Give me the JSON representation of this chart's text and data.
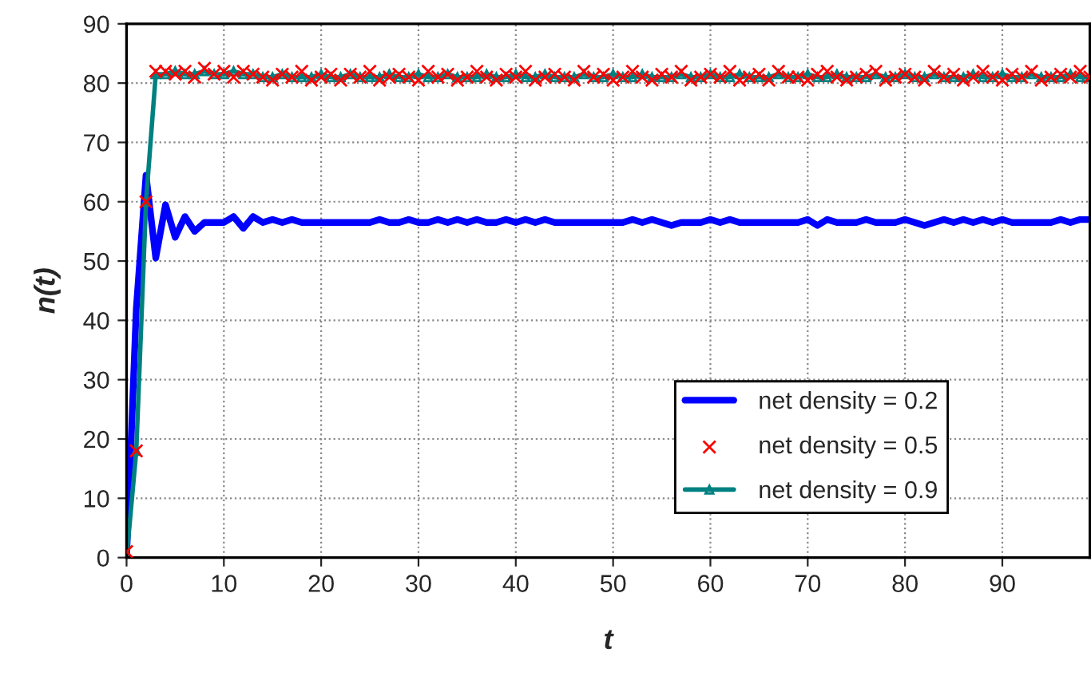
{
  "chart_data": {
    "type": "line",
    "xlabel": "t",
    "ylabel": "n(t)",
    "x": [
      0,
      1,
      2,
      3,
      4,
      5,
      6,
      7,
      8,
      9,
      10,
      11,
      12,
      13,
      14,
      15,
      16,
      17,
      18,
      19,
      20,
      21,
      22,
      23,
      24,
      25,
      26,
      27,
      28,
      29,
      30,
      31,
      32,
      33,
      34,
      35,
      36,
      37,
      38,
      39,
      40,
      41,
      42,
      43,
      44,
      45,
      46,
      47,
      48,
      49,
      50,
      51,
      52,
      53,
      54,
      55,
      56,
      57,
      58,
      59,
      60,
      61,
      62,
      63,
      64,
      65,
      66,
      67,
      68,
      69,
      70,
      71,
      72,
      73,
      74,
      75,
      76,
      77,
      78,
      79,
      80,
      81,
      82,
      83,
      84,
      85,
      86,
      87,
      88,
      89,
      90,
      91,
      92,
      93,
      94,
      95,
      96,
      97,
      98,
      99
    ],
    "series": [
      {
        "name": "net density = 0.2",
        "color": "#0000ff",
        "marker": "none",
        "values": [
          0,
          42,
          64.5,
          50.5,
          59.5,
          54,
          57.5,
          55,
          56.5,
          56.5,
          56.5,
          57.5,
          55.5,
          57.5,
          56.5,
          57,
          56.5,
          57,
          56.5,
          56.5,
          56.5,
          56.5,
          56.5,
          56.5,
          56.5,
          56.5,
          57,
          56.5,
          56.5,
          57,
          56.5,
          56.5,
          57,
          56.5,
          57,
          56.5,
          57,
          56.5,
          56.5,
          57,
          56.5,
          57,
          56.5,
          57,
          56.5,
          56.5,
          56.5,
          56.5,
          56.5,
          56.5,
          56.5,
          56.5,
          57,
          56.5,
          57,
          56.5,
          56,
          56.5,
          56.5,
          56.5,
          57,
          56.5,
          57,
          56.5,
          56.5,
          56.5,
          56.5,
          56.5,
          56.5,
          56.5,
          57,
          56,
          57,
          56.5,
          56.5,
          56.5,
          57,
          56.5,
          56.5,
          56.5,
          57,
          56.5,
          56,
          56.5,
          57,
          56.5,
          57,
          56.5,
          57,
          56.5,
          57,
          56.5,
          56.5,
          56.5,
          56.5,
          56.5,
          57,
          56.5,
          57,
          57
        ]
      },
      {
        "name": "net density = 0.5",
        "color": "#ff0000",
        "type": "scatter",
        "marker": "cross",
        "values": [
          1,
          18,
          60,
          82,
          82,
          81.5,
          82,
          81,
          82.5,
          81.5,
          82,
          81,
          82,
          81.5,
          81,
          80.5,
          81.5,
          81,
          82,
          80.5,
          81,
          81.5,
          80.5,
          81.5,
          81,
          82,
          80.5,
          81,
          81.5,
          81,
          80.5,
          82,
          81,
          81.5,
          80.5,
          81,
          82,
          81,
          80.5,
          81.5,
          81,
          82,
          80.5,
          81,
          81.5,
          81,
          80.5,
          82,
          81,
          81.5,
          80.5,
          81,
          82,
          81,
          80.5,
          81.5,
          81,
          82,
          80.5,
          81,
          81.5,
          81,
          82,
          80.5,
          81,
          81.5,
          80.5,
          82,
          81,
          81,
          80.5,
          81.5,
          82,
          81,
          80.5,
          81,
          81.5,
          82,
          80.5,
          81,
          81.5,
          81,
          80.5,
          82,
          81,
          81.5,
          80.5,
          81,
          82,
          81,
          80.5,
          81.5,
          81,
          82,
          80.5,
          81,
          81.5,
          81,
          82,
          81
        ]
      },
      {
        "name": "net density = 0.9",
        "color": "#008080",
        "marker": "triangle",
        "values": [
          0,
          18,
          60,
          81.5,
          81.5,
          82,
          81.5,
          81.5,
          82,
          81.5,
          81.5,
          82,
          81.5,
          81.5,
          81,
          81,
          81.5,
          81,
          81,
          81,
          81.5,
          81,
          81,
          81.5,
          81,
          81,
          81,
          81.5,
          81,
          81,
          81.5,
          81,
          81,
          81.5,
          81,
          81,
          81,
          81.5,
          81,
          81,
          81.5,
          81,
          81,
          81.5,
          81,
          81,
          81,
          81.5,
          81,
          81,
          81.5,
          81,
          81,
          81.5,
          81,
          81,
          81,
          81.5,
          81,
          81,
          81.5,
          81,
          81,
          81.5,
          81,
          81,
          81,
          81.5,
          81,
          81,
          81.5,
          81,
          81,
          81.5,
          81,
          81,
          81,
          81.5,
          81,
          81,
          81.5,
          81,
          81,
          81.5,
          81,
          81,
          81,
          81.5,
          81,
          81,
          81.5,
          81,
          81,
          81.5,
          81,
          81,
          81,
          81.5,
          81,
          81
        ]
      }
    ],
    "xlim": [
      0,
      99
    ],
    "xticks": [
      0,
      10,
      20,
      30,
      40,
      50,
      60,
      70,
      80,
      90
    ],
    "ylim": [
      0,
      90
    ],
    "yticks": [
      0,
      10,
      20,
      30,
      40,
      50,
      60,
      70,
      80,
      90
    ],
    "grid": true,
    "legend": "right"
  }
}
